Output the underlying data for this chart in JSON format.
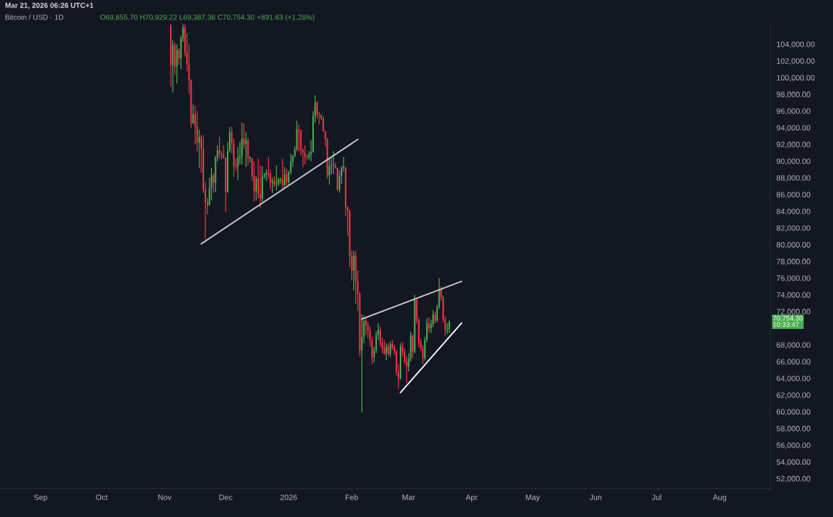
{
  "chart_data": {
    "type": "candlestick",
    "title": "Bitcoin / USD · 1D",
    "subtitle": "O69,855.70 H70,929.22 L69,387.38 C70,754.30 +891.63 (+1.28%)",
    "annotations": [
      "Mar 21, 2026 06:26 UTC+1",
      "70,754.30",
      "10:33:47"
    ],
    "x": [
      "2025-11-04",
      "2025-11-05",
      "2025-11-06",
      "2025-11-07",
      "2025-11-08",
      "2025-11-09",
      "2025-11-10",
      "2025-11-11",
      "2025-11-12",
      "2025-11-13",
      "2025-11-14",
      "2025-11-15",
      "2025-11-16",
      "2025-11-17",
      "2025-11-18",
      "2025-11-19",
      "2025-11-20",
      "2025-11-21",
      "2025-11-22",
      "2025-11-23",
      "2025-11-24",
      "2025-11-25",
      "2025-11-26",
      "2025-11-27",
      "2025-11-28",
      "2025-11-29",
      "2025-11-30",
      "2025-12-01",
      "2025-12-02",
      "2025-12-03",
      "2025-12-04",
      "2025-12-05",
      "2025-12-06",
      "2025-12-07",
      "2025-12-08",
      "2025-12-09",
      "2025-12-10",
      "2025-12-11",
      "2025-12-12",
      "2025-12-13",
      "2025-12-14",
      "2025-12-15",
      "2025-12-16",
      "2025-12-17",
      "2025-12-18",
      "2025-12-19",
      "2025-12-20",
      "2025-12-21",
      "2025-12-22",
      "2025-12-23",
      "2025-12-24",
      "2025-12-25",
      "2025-12-26",
      "2025-12-27",
      "2025-12-28",
      "2025-12-29",
      "2025-12-30",
      "2025-12-31",
      "2026-01-01",
      "2026-01-02",
      "2026-01-03",
      "2026-01-04",
      "2026-01-05",
      "2026-01-06",
      "2026-01-07",
      "2026-01-08",
      "2026-01-09",
      "2026-01-10",
      "2026-01-11",
      "2026-01-12",
      "2026-01-13",
      "2026-01-14",
      "2026-01-15",
      "2026-01-16",
      "2026-01-17",
      "2026-01-18",
      "2026-01-19",
      "2026-01-20",
      "2026-01-21",
      "2026-01-22",
      "2026-01-23",
      "2026-01-24",
      "2026-01-25",
      "2026-01-26",
      "2026-01-27",
      "2026-01-28",
      "2026-01-29",
      "2026-01-30",
      "2026-01-31",
      "2026-02-01",
      "2026-02-02",
      "2026-02-03",
      "2026-02-04",
      "2026-02-05",
      "2026-02-06",
      "2026-02-07",
      "2026-02-08",
      "2026-02-09",
      "2026-02-10",
      "2026-02-11",
      "2026-02-12",
      "2026-02-13",
      "2026-02-14",
      "2026-02-15",
      "2026-02-16",
      "2026-02-17",
      "2026-02-18",
      "2026-02-19",
      "2026-02-20",
      "2026-02-21",
      "2026-02-22",
      "2026-02-23",
      "2026-02-24",
      "2026-02-25",
      "2026-02-26",
      "2026-02-27",
      "2026-02-28",
      "2026-03-01",
      "2026-03-02",
      "2026-03-03",
      "2026-03-04",
      "2026-03-05",
      "2026-03-06",
      "2026-03-07",
      "2026-03-08",
      "2026-03-09",
      "2026-03-10",
      "2026-03-11",
      "2026-03-12",
      "2026-03-13",
      "2026-03-14",
      "2026-03-15",
      "2026-03-16",
      "2026-03-17",
      "2026-03-18",
      "2026-03-19",
      "2026-03-20",
      "2026-03-21"
    ],
    "ohlc": [
      [
        106200,
        106400,
        98900,
        101500
      ],
      [
        101500,
        104500,
        98200,
        103900
      ],
      [
        103900,
        104200,
        100300,
        101300
      ],
      [
        101300,
        104000,
        99300,
        103300
      ],
      [
        103300,
        103500,
        101500,
        102300
      ],
      [
        102300,
        105000,
        101000,
        104700
      ],
      [
        104700,
        106400,
        104300,
        106000
      ],
      [
        106000,
        106400,
        102500,
        103000
      ],
      [
        103000,
        105300,
        100800,
        101600
      ],
      [
        101600,
        104000,
        98000,
        99700
      ],
      [
        99700,
        99800,
        94000,
        94500
      ],
      [
        94500,
        96800,
        94500,
        95600
      ],
      [
        95600,
        96600,
        92000,
        94200
      ],
      [
        94200,
        96000,
        91200,
        92200
      ],
      [
        92200,
        93800,
        89200,
        92900
      ],
      [
        92900,
        93100,
        88600,
        91500
      ],
      [
        91500,
        93100,
        86200,
        86600
      ],
      [
        86600,
        87500,
        80600,
        85100
      ],
      [
        85100,
        85600,
        83600,
        84700
      ],
      [
        84700,
        88000,
        84700,
        86800
      ],
      [
        86800,
        89200,
        85300,
        88300
      ],
      [
        88300,
        88500,
        86200,
        87400
      ],
      [
        87400,
        90600,
        86300,
        90500
      ],
      [
        90500,
        91900,
        90000,
        91300
      ],
      [
        91300,
        92900,
        90300,
        90900
      ],
      [
        90900,
        91200,
        90200,
        90800
      ],
      [
        90800,
        91900,
        90300,
        90400
      ],
      [
        90400,
        90400,
        83900,
        86300
      ],
      [
        86300,
        92300,
        86200,
        91300
      ],
      [
        91300,
        94100,
        91000,
        93500
      ],
      [
        93500,
        94100,
        90900,
        92100
      ],
      [
        92100,
        92700,
        88100,
        89400
      ],
      [
        89400,
        90300,
        88900,
        89300
      ],
      [
        89300,
        91700,
        87700,
        90400
      ],
      [
        90400,
        92300,
        89600,
        90600
      ],
      [
        90600,
        94600,
        89600,
        92700
      ],
      [
        92700,
        94500,
        91500,
        92000
      ],
      [
        92000,
        93500,
        89300,
        92500
      ],
      [
        92500,
        92800,
        89500,
        90300
      ],
      [
        90300,
        90600,
        89800,
        90400
      ],
      [
        90300,
        90400,
        87600,
        88200
      ],
      [
        88200,
        90000,
        85200,
        86400
      ],
      [
        86400,
        88200,
        85300,
        87900
      ],
      [
        87900,
        90300,
        85500,
        86100
      ],
      [
        86100,
        89500,
        84400,
        85500
      ],
      [
        85500,
        89400,
        85100,
        88100
      ],
      [
        88100,
        88600,
        87900,
        88300
      ],
      [
        88300,
        89000,
        87600,
        88600
      ],
      [
        88600,
        90500,
        87900,
        88500
      ],
      [
        88500,
        88900,
        86600,
        87400
      ],
      [
        87400,
        88000,
        86200,
        87600
      ],
      [
        87600,
        88200,
        86900,
        87200
      ],
      [
        87200,
        89500,
        86500,
        87300
      ],
      [
        87300,
        88000,
        87000,
        87800
      ],
      [
        87800,
        88000,
        87300,
        87900
      ],
      [
        87800,
        90300,
        86700,
        87100
      ],
      [
        87100,
        89300,
        86800,
        88400
      ],
      [
        88400,
        89100,
        87100,
        87500
      ],
      [
        87500,
        88800,
        87100,
        88700
      ],
      [
        88700,
        90900,
        88400,
        89900
      ],
      [
        89900,
        90700,
        89300,
        90600
      ],
      [
        90600,
        91800,
        90500,
        91400
      ],
      [
        91400,
        94800,
        91200,
        93800
      ],
      [
        93800,
        94400,
        91200,
        93700
      ],
      [
        93700,
        93700,
        90700,
        91300
      ],
      [
        91300,
        91500,
        89300,
        91000
      ],
      [
        91000,
        91900,
        89600,
        90500
      ],
      [
        90500,
        90800,
        90100,
        90400
      ],
      [
        90400,
        91200,
        90200,
        90800
      ],
      [
        90800,
        92500,
        90000,
        91100
      ],
      [
        91100,
        96000,
        91000,
        95400
      ],
      [
        95400,
        97900,
        94600,
        97000
      ],
      [
        97000,
        97200,
        95100,
        95600
      ],
      [
        95600,
        95900,
        94400,
        95500
      ],
      [
        95500,
        95600,
        94900,
        95100
      ],
      [
        95100,
        95400,
        93500,
        93600
      ],
      [
        93600,
        93600,
        91800,
        92600
      ],
      [
        92600,
        92800,
        87900,
        88300
      ],
      [
        88300,
        90400,
        87200,
        89400
      ],
      [
        89400,
        90300,
        88400,
        89500
      ],
      [
        89500,
        91200,
        88500,
        89600
      ],
      [
        89500,
        89800,
        89100,
        89200
      ],
      [
        89200,
        89200,
        86400,
        86600
      ],
      [
        86600,
        88900,
        86200,
        88200
      ],
      [
        88200,
        89400,
        87300,
        89200
      ],
      [
        89200,
        90500,
        88700,
        89400
      ],
      [
        89200,
        89300,
        83400,
        84500
      ],
      [
        84500,
        84600,
        81000,
        84100
      ],
      [
        84100,
        84200,
        77300,
        78600
      ],
      [
        78600,
        79300,
        75700,
        76900
      ],
      [
        76900,
        79300,
        74500,
        78700
      ],
      [
        78700,
        79200,
        72900,
        75600
      ],
      [
        75600,
        76900,
        72100,
        74100
      ],
      [
        74100,
        74300,
        66600,
        67300
      ],
      [
        67300,
        71700,
        59900,
        69000
      ],
      [
        69000,
        71500,
        68200,
        70900
      ],
      [
        70900,
        71300,
        69200,
        70300
      ],
      [
        70300,
        70800,
        68800,
        69700
      ],
      [
        69700,
        70200,
        67800,
        68600
      ],
      [
        68600,
        69000,
        65700,
        66500
      ],
      [
        66500,
        67800,
        65900,
        67400
      ],
      [
        67400,
        69600,
        67000,
        69200
      ],
      [
        69200,
        70600,
        68600,
        69800
      ],
      [
        69800,
        70200,
        67800,
        68200
      ],
      [
        68200,
        68900,
        67000,
        67600
      ],
      [
        67600,
        68600,
        66800,
        67000
      ],
      [
        67000,
        68200,
        66200,
        67800
      ],
      [
        67800,
        68200,
        66700,
        66900
      ],
      [
        66900,
        68400,
        66500,
        68100
      ],
      [
        68100,
        68600,
        67400,
        67700
      ],
      [
        67700,
        68000,
        66800,
        67200
      ],
      [
        67200,
        67400,
        64300,
        64700
      ],
      [
        64700,
        65700,
        62700,
        64000
      ],
      [
        64000,
        68200,
        63800,
        67800
      ],
      [
        67800,
        68400,
        66600,
        67200
      ],
      [
        67200,
        67600,
        65700,
        66000
      ],
      [
        66000,
        66600,
        63500,
        65400
      ],
      [
        65400,
        67000,
        64800,
        66300
      ],
      [
        66300,
        69600,
        66000,
        69100
      ],
      [
        69100,
        69300,
        66400,
        67200
      ],
      [
        67200,
        74000,
        67000,
        73400
      ],
      [
        73400,
        73600,
        70600,
        71000
      ],
      [
        71000,
        71200,
        67700,
        68200
      ],
      [
        68200,
        68700,
        67300,
        67600
      ],
      [
        67600,
        68000,
        65700,
        66400
      ],
      [
        66400,
        69000,
        66100,
        68600
      ],
      [
        68600,
        71200,
        68300,
        70600
      ],
      [
        70600,
        71300,
        69500,
        70000
      ],
      [
        70000,
        71000,
        69400,
        70500
      ],
      [
        70500,
        72200,
        70100,
        71600
      ],
      [
        71600,
        72000,
        70600,
        70900
      ],
      [
        70900,
        72800,
        70700,
        72500
      ],
      [
        72500,
        76000,
        72300,
        74600
      ],
      [
        74600,
        75000,
        73300,
        73700
      ],
      [
        73700,
        73900,
        70700,
        71100
      ],
      [
        71100,
        71400,
        69100,
        69800
      ],
      [
        69800,
        70600,
        69300,
        69856
      ],
      [
        69855.7,
        70929.22,
        69387.38,
        70754.3
      ]
    ],
    "series": [
      {
        "type": "line",
        "color": "#c8cad0",
        "x": [
          "2025-11-19",
          "2026-02-04"
        ],
        "values": [
          80100,
          92600
        ]
      },
      {
        "type": "line",
        "color": "#c8cad0",
        "x": [
          "2026-02-06",
          "2026-03-27"
        ],
        "values": [
          71100,
          75600
        ]
      },
      {
        "type": "line",
        "color": "#ffffff",
        "x": [
          "2026-02-25",
          "2026-03-27"
        ],
        "values": [
          62300,
          70600
        ]
      }
    ],
    "xlim": [
      "2025-08-12",
      "2026-08-26"
    ],
    "xticks": [
      {
        "value": "2025-09-01",
        "label": "Sep"
      },
      {
        "value": "2025-10-01",
        "label": "Oct"
      },
      {
        "value": "2025-11-01",
        "label": "Nov"
      },
      {
        "value": "2025-12-01",
        "label": "Dec"
      },
      {
        "value": "2026-01-01",
        "label": "2026"
      },
      {
        "value": "2026-02-01",
        "label": "Feb"
      },
      {
        "value": "2026-03-01",
        "label": "Mar"
      },
      {
        "value": "2026-04-01",
        "label": "Apr"
      },
      {
        "value": "2026-05-01",
        "label": "May"
      },
      {
        "value": "2026-06-01",
        "label": "Jun"
      },
      {
        "value": "2026-07-01",
        "label": "Jul"
      },
      {
        "value": "2026-08-01",
        "label": "Aug"
      }
    ],
    "ylim": [
      50800,
      106500
    ],
    "yticks": [
      {
        "value": 52000,
        "label": "52,000.00"
      },
      {
        "value": 54000,
        "label": "54,000.00"
      },
      {
        "value": 56000,
        "label": "56,000.00"
      },
      {
        "value": 58000,
        "label": "58,000.00"
      },
      {
        "value": 60000,
        "label": "60,000.00"
      },
      {
        "value": 62000,
        "label": "62,000.00"
      },
      {
        "value": 64000,
        "label": "64,000.00"
      },
      {
        "value": 66000,
        "label": "66,000.00"
      },
      {
        "value": 68000,
        "label": "68,000.00"
      },
      {
        "value": 72000,
        "label": "72,000.00"
      },
      {
        "value": 74000,
        "label": "74,000.00"
      },
      {
        "value": 76000,
        "label": "76,000.00"
      },
      {
        "value": 78000,
        "label": "78,000.00"
      },
      {
        "value": 80000,
        "label": "80,000.00"
      },
      {
        "value": 82000,
        "label": "82,000.00"
      },
      {
        "value": 84000,
        "label": "84,000.00"
      },
      {
        "value": 86000,
        "label": "86,000.00"
      },
      {
        "value": 88000,
        "label": "88,000.00"
      },
      {
        "value": 90000,
        "label": "90,000.00"
      },
      {
        "value": 92000,
        "label": "92,000.00"
      },
      {
        "value": 94000,
        "label": "94,000.00"
      },
      {
        "value": 96000,
        "label": "96,000.00"
      },
      {
        "value": 98000,
        "label": "98,000.00"
      },
      {
        "value": 100000,
        "label": "100,000.00"
      },
      {
        "value": 102000,
        "label": "102,000.00"
      },
      {
        "value": 104000,
        "label": "104,000.00"
      }
    ]
  }
}
